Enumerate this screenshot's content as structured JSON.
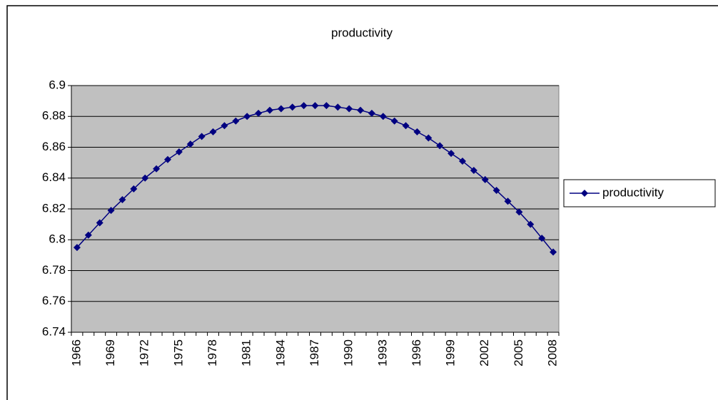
{
  "chart_data": {
    "type": "line",
    "title": "productivity",
    "categories": [
      "1966",
      null,
      null,
      "1969",
      null,
      null,
      "1972",
      null,
      null,
      "1975",
      null,
      null,
      "1978",
      null,
      null,
      "1981",
      null,
      null,
      "1984",
      null,
      null,
      "1987",
      null,
      null,
      "1990",
      null,
      null,
      "1993",
      null,
      null,
      "1996",
      null,
      null,
      "1999",
      null,
      null,
      "2002",
      null,
      null,
      "2005",
      null,
      null,
      "2008"
    ],
    "series": [
      {
        "name": "productivity",
        "color": "#000080",
        "values": [
          6.795,
          6.803,
          6.811,
          6.819,
          6.826,
          6.833,
          6.84,
          6.846,
          6.852,
          6.857,
          6.862,
          6.867,
          6.87,
          6.874,
          6.877,
          6.88,
          6.882,
          6.884,
          6.885,
          6.886,
          6.887,
          6.887,
          6.887,
          6.886,
          6.885,
          6.884,
          6.882,
          6.88,
          6.877,
          6.874,
          6.87,
          6.866,
          6.861,
          6.856,
          6.851,
          6.845,
          6.839,
          6.832,
          6.825,
          6.818,
          6.81,
          6.801,
          6.792
        ]
      }
    ],
    "ylim": [
      6.74,
      6.9
    ],
    "yticks": [
      6.74,
      6.76,
      6.78,
      6.8,
      6.82,
      6.84,
      6.86,
      6.88,
      6.9
    ],
    "grid": true,
    "plot_background": "#c0c0c0",
    "legend": "right"
  }
}
